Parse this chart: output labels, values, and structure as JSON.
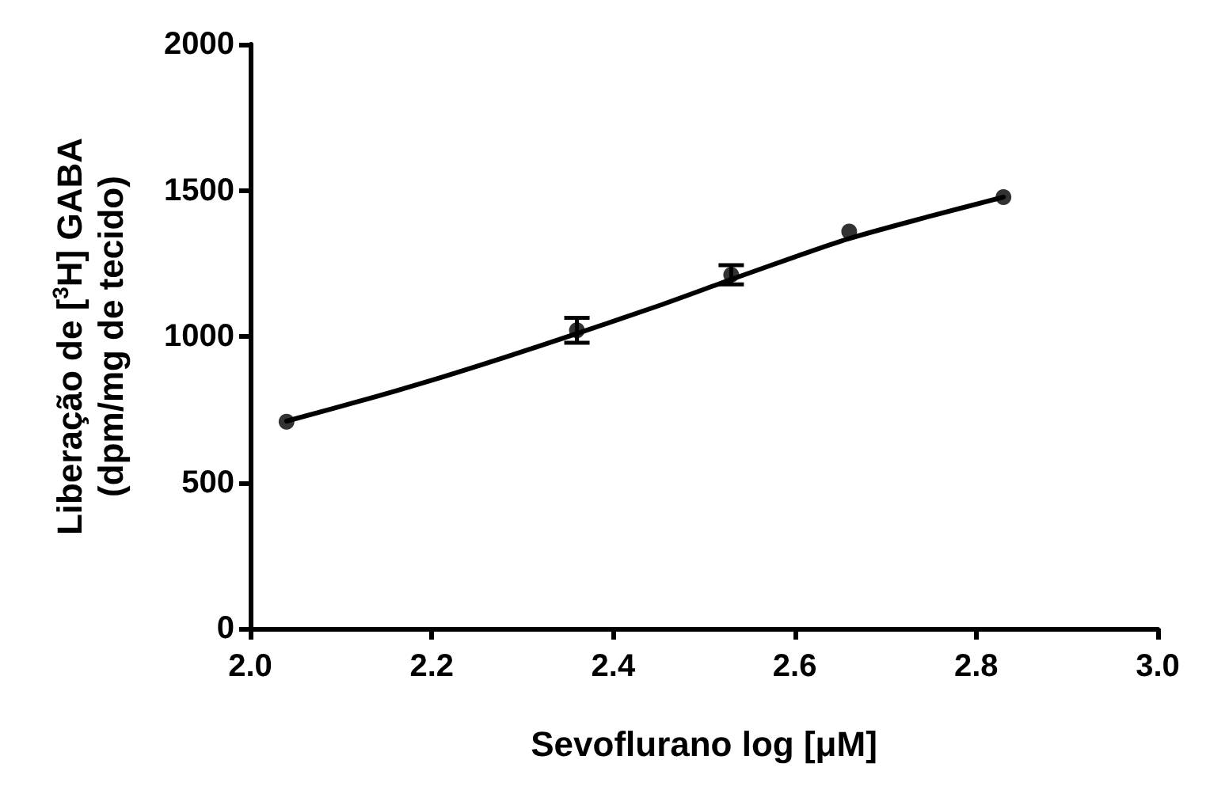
{
  "chart_data": {
    "type": "scatter",
    "xlabel": "Sevoflurano log [μM]",
    "ylabel": "Liberação de [$^{3}$H] GABA\n(dpm/mg de tecido)",
    "xlim": [
      2.0,
      3.0
    ],
    "xticks": [
      {
        "value": 2,
        "label": "2.0"
      },
      {
        "value": 2.2,
        "label": "2.2"
      },
      {
        "value": 2.4,
        "label": "2.4"
      },
      {
        "value": 2.6,
        "label": "2.6"
      },
      {
        "value": 2.8,
        "label": "2.8"
      },
      {
        "value": 3,
        "label": "3.0"
      }
    ],
    "ylim": [
      0,
      2000
    ],
    "yticks": [
      0,
      500,
      1000,
      1500,
      2000
    ],
    "grid": false,
    "marker": "circle",
    "series": [
      {
        "color": "#000000",
        "x": [
          2.04,
          2.36,
          2.53,
          2.66,
          2.83
        ],
        "values": [
          708,
          1021,
          1211,
          1359,
          1477
        ],
        "errors": [
          null,
          43,
          33,
          null,
          null
        ]
      },
      {
        "type": "line",
        "color": "#000000",
        "line_style": "solid",
        "marker": "none",
        "x": [
          2.04,
          2.12,
          2.2,
          2.28,
          2.36,
          2.45,
          2.53,
          2.6,
          2.66,
          2.75,
          2.83
        ],
        "values": [
          710,
          778,
          850,
          928,
          1010,
          1105,
          1195,
          1272,
          1335,
          1412,
          1477
        ]
      }
    ]
  }
}
